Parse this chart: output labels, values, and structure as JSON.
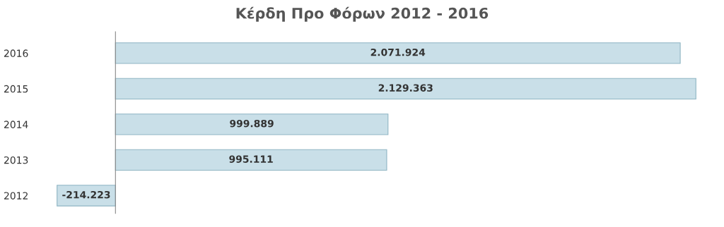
{
  "chart_data": {
    "type": "bar",
    "orientation": "horizontal",
    "title": "Κέρδη Προ Φόρων 2012 - 2016",
    "categories": [
      "2016",
      "2015",
      "2014",
      "2013",
      "2012"
    ],
    "values": [
      2071924,
      2129363,
      999889,
      995111,
      -214223
    ],
    "value_labels": [
      "2.071.924",
      "2.129.363",
      "999.889",
      "995.111",
      "-214.223"
    ],
    "color": "#c9dfe8",
    "grid": false,
    "legend": false
  }
}
